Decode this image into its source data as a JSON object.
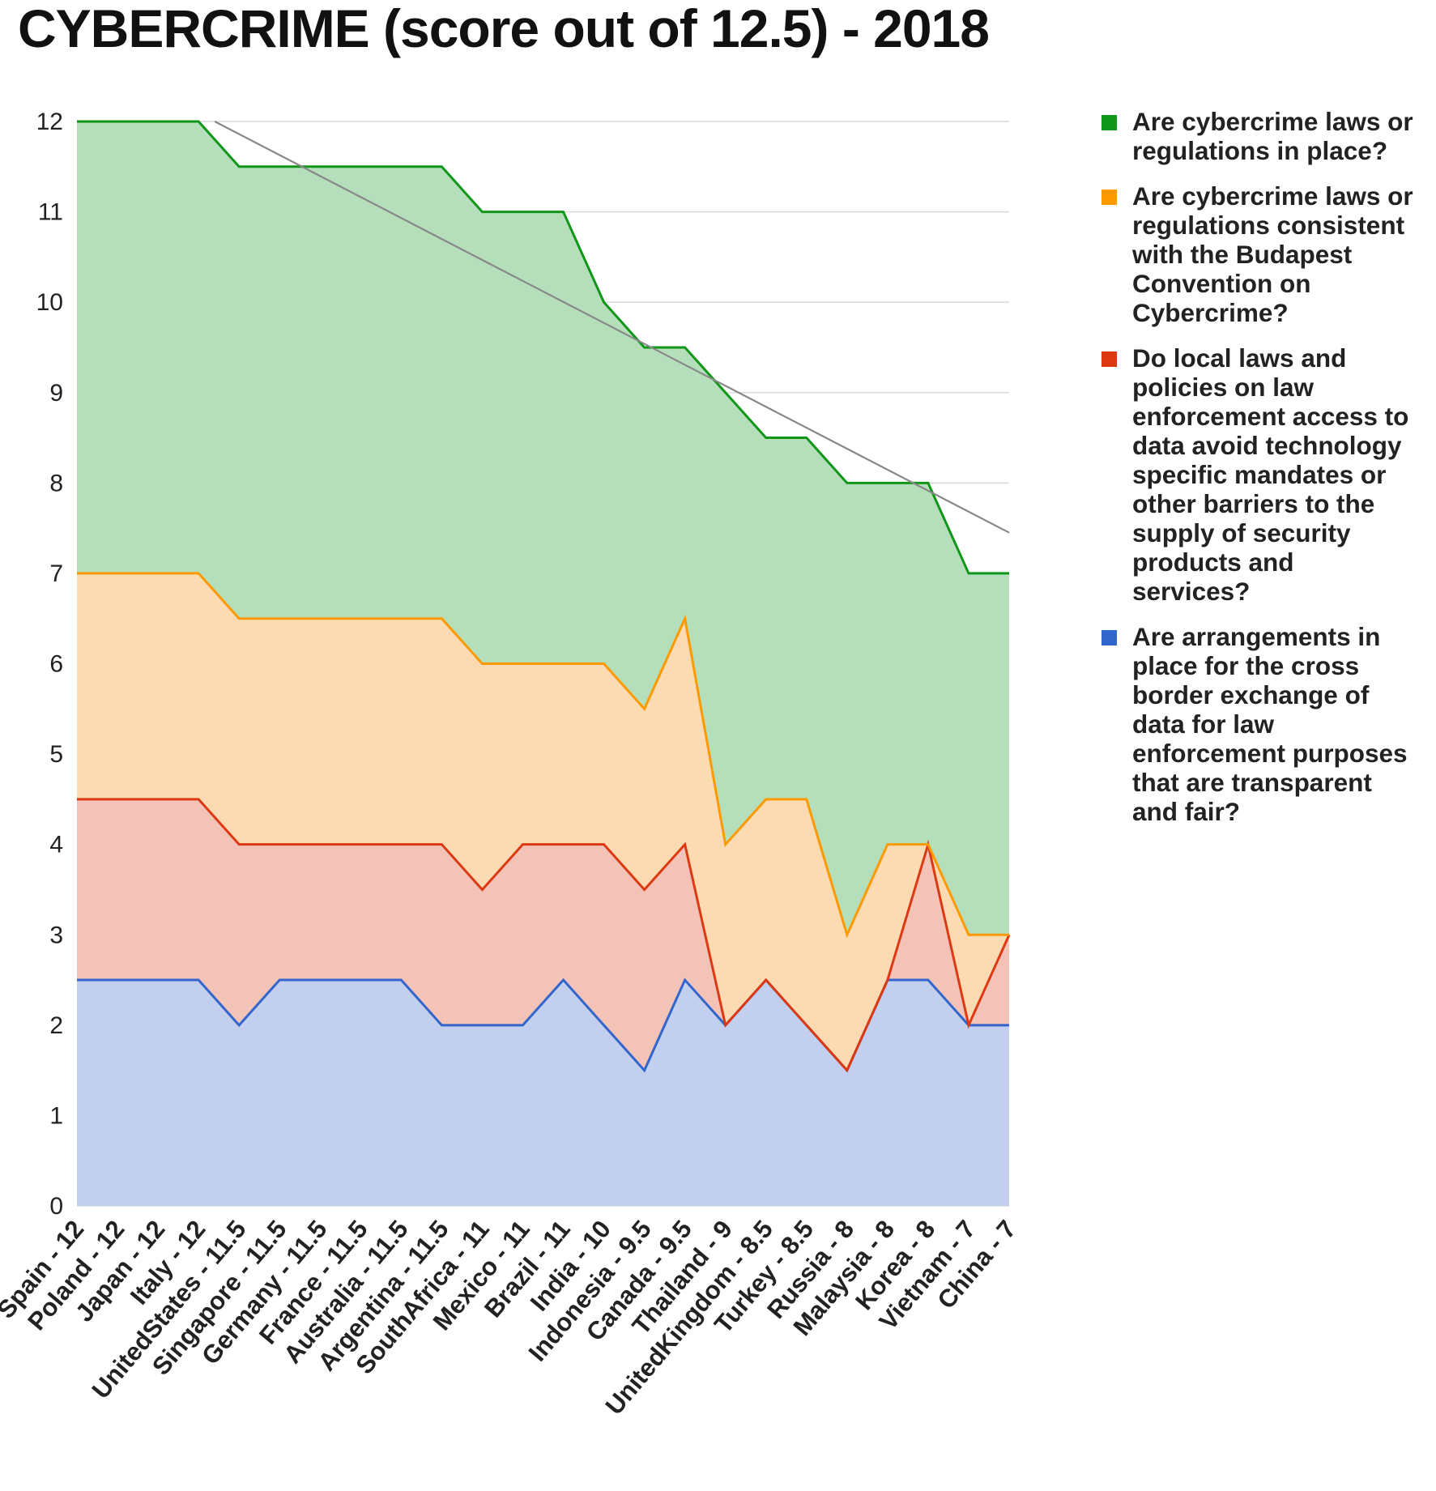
{
  "chart_data": {
    "type": "area",
    "stacked": true,
    "title": "CYBERCRIME (score out of 12.5) - 2018",
    "xlabel": "",
    "ylabel": "",
    "ylim": [
      0,
      12
    ],
    "yticks": [
      "0",
      "1",
      "2",
      "3",
      "4",
      "5",
      "6",
      "7",
      "8",
      "9",
      "10",
      "11",
      "12"
    ],
    "grid": true,
    "legend_position": "right",
    "categories": [
      "Spain - 12",
      "Poland - 12",
      "Japan - 12",
      "Italy - 12",
      "UnitedStates - 11.5",
      "Singapore - 11.5",
      "Germany - 11.5",
      "France - 11.5",
      "Australia - 11.5",
      "Argentina - 11.5",
      "SouthAfrica - 11",
      "Mexico - 11",
      "Brazil - 11",
      "India - 10",
      "Indonesia - 9.5",
      "Canada - 9.5",
      "Thailand - 9",
      "UnitedKingdom - 8.5",
      "Turkey - 8.5",
      "Russia - 8",
      "Malaysia - 8",
      "Korea - 8",
      "Vietnam - 7",
      "China - 7"
    ],
    "series": [
      {
        "name": "Are arrangements in place for the cross border exchange of data for law enforcement purposes that are transparent and fair?",
        "color": "#3366cc",
        "fill": "#c2cfee",
        "values": [
          2.5,
          2.5,
          2.5,
          2.5,
          2,
          2.5,
          2.5,
          2.5,
          2.5,
          2,
          2,
          2,
          2.5,
          2,
          1.5,
          2.5,
          2,
          2.5,
          2,
          1.5,
          2.5,
          2.5,
          2,
          2
        ]
      },
      {
        "name": "Do local laws and policies on law enforcement access to data avoid technology specific mandates or other barriers to the supply of security products and services?",
        "color": "#dc3912",
        "fill": "#f3c3b8",
        "values": [
          2,
          2,
          2,
          2,
          2,
          1.5,
          1.5,
          1.5,
          1.5,
          2,
          1.5,
          2,
          1.5,
          2,
          2,
          1.5,
          0,
          0,
          0,
          0,
          0,
          1.5,
          0,
          1
        ]
      },
      {
        "name": "Are cybercrime laws or regulations consistent with the Budapest Convention on Cybercrime?",
        "color": "#ff9900",
        "fill": "#fcdbb3",
        "values": [
          2.5,
          2.5,
          2.5,
          2.5,
          2.5,
          2.5,
          2.5,
          2.5,
          2.5,
          2.5,
          2.5,
          2,
          2,
          2,
          2,
          2.5,
          2,
          2,
          2.5,
          1.5,
          1.5,
          0,
          1,
          0
        ]
      },
      {
        "name": "Are cybercrime laws or regulations in place?",
        "color": "#109618",
        "fill": "#b4dfba",
        "values": [
          5,
          5,
          5,
          5,
          5,
          5,
          5,
          5,
          5,
          5,
          5,
          5,
          5,
          4,
          4,
          3,
          5,
          4,
          4,
          5,
          4,
          4,
          4,
          4
        ]
      }
    ],
    "trendline": {
      "type": "linear",
      "color": "#888888",
      "start": 12.0,
      "end": 7.45
    }
  },
  "legend": {
    "items": [
      {
        "color": "#109618",
        "lines": [
          "Are cybercrime laws or",
          "regulations in place?"
        ]
      },
      {
        "color": "#ff9900",
        "lines": [
          "Are cybercrime laws or",
          "regulations consistent",
          "with the Budapest",
          "Convention on",
          "Cybercrime?"
        ]
      },
      {
        "color": "#dc3912",
        "lines": [
          "Do local laws and",
          "policies on law",
          "enforcement access to",
          "data avoid technology",
          "specific mandates or",
          "other barriers to the",
          "supply of security",
          "products and",
          "services?"
        ]
      },
      {
        "color": "#3366cc",
        "lines": [
          "Are arrangements in",
          "place for the cross",
          "border exchange of",
          "data for law",
          "enforcement purposes",
          "that are transparent",
          "and fair?"
        ]
      }
    ]
  }
}
